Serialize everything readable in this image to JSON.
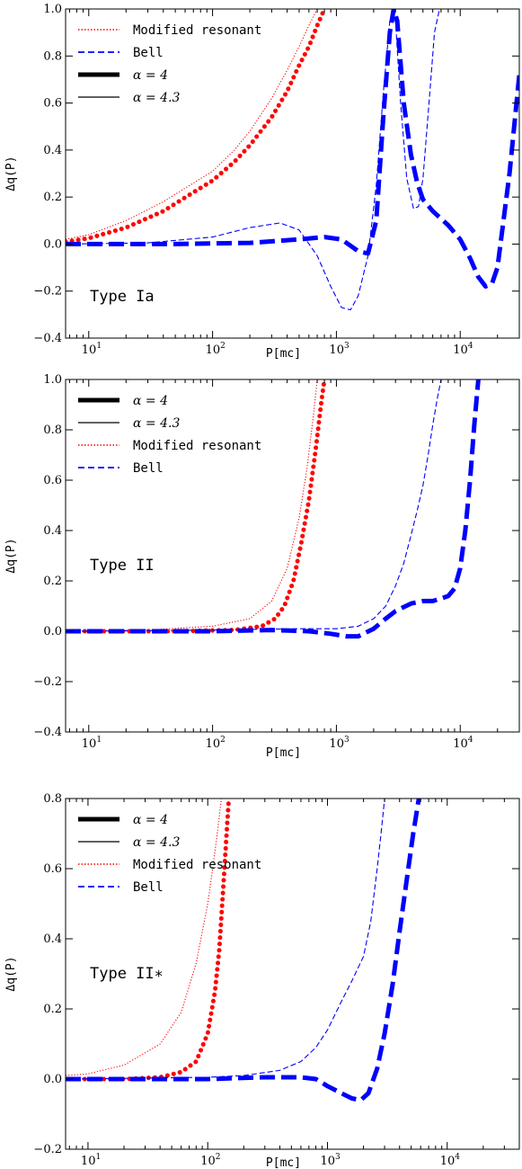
{
  "chart_data": [
    {
      "type": "line",
      "panel": "Type Ia",
      "annotation": "Type Ia",
      "xlabel": "P[mc]",
      "ylabel": "Δq(P)",
      "xscale": "log",
      "xlim": [
        6.5,
        30000
      ],
      "ylim": [
        -0.4,
        1.0
      ],
      "xticks": [
        {
          "v": 10,
          "b": "10",
          "e": "1"
        },
        {
          "v": 100,
          "b": "10",
          "e": "2"
        },
        {
          "v": 1000,
          "b": "10",
          "e": "3"
        },
        {
          "v": 10000,
          "b": "10",
          "e": "4"
        }
      ],
      "yticks": [
        {
          "v": -0.4,
          "t": "−0.4"
        },
        {
          "v": -0.2,
          "t": "−0.2"
        },
        {
          "v": 0.0,
          "t": "0.0"
        },
        {
          "v": 0.2,
          "t": "0.2"
        },
        {
          "v": 0.4,
          "t": "0.4"
        },
        {
          "v": 0.6,
          "t": "0.6"
        },
        {
          "v": 0.8,
          "t": "0.8"
        },
        {
          "v": 1.0,
          "t": "1.0"
        }
      ],
      "legend_position": "top-left",
      "legend": [
        {
          "label": "Modified resonant",
          "style": "dotted",
          "color": "#ff0000",
          "math": false
        },
        {
          "label": "Bell",
          "style": "dashed",
          "color": "#0000ff",
          "math": false
        },
        {
          "label": "α = 4",
          "style": "thick",
          "color": "#000000",
          "math": true
        },
        {
          "label": "α = 4.3",
          "style": "thin",
          "color": "#000000",
          "math": true
        }
      ],
      "series": [
        {
          "model": "Modified resonant",
          "alpha": 4,
          "color": "#ff0000",
          "dash": "dotted",
          "width": "thick",
          "x": [
            6.5,
            10,
            20,
            40,
            70,
            100,
            150,
            200,
            300,
            400,
            500,
            600,
            700,
            800
          ],
          "y": [
            0.01,
            0.025,
            0.07,
            0.14,
            0.22,
            0.27,
            0.35,
            0.42,
            0.54,
            0.65,
            0.76,
            0.84,
            0.93,
            1.0
          ]
        },
        {
          "model": "Modified resonant",
          "alpha": 4.3,
          "color": "#ff0000",
          "dash": "dotted",
          "width": "thin",
          "x": [
            6.5,
            10,
            20,
            40,
            70,
            100,
            150,
            200,
            300,
            400,
            500,
            600,
            700
          ],
          "y": [
            0.02,
            0.04,
            0.1,
            0.18,
            0.26,
            0.31,
            0.4,
            0.48,
            0.62,
            0.74,
            0.84,
            0.93,
            1.0
          ]
        },
        {
          "model": "Bell",
          "alpha": 4,
          "color": "#0000ff",
          "dash": "dashed",
          "width": "thick",
          "x": [
            6.5,
            50,
            200,
            500,
            800,
            1100,
            1500,
            1800,
            2100,
            2400,
            2700,
            2900,
            3100,
            3500,
            4000,
            4500,
            5000,
            6000,
            8000,
            10000,
            12000,
            14000,
            16000,
            18000,
            20000,
            25000,
            30000
          ],
          "y": [
            0.0,
            0.0,
            0.005,
            0.02,
            0.03,
            0.02,
            -0.03,
            -0.04,
            0.1,
            0.55,
            0.9,
            1.0,
            0.95,
            0.6,
            0.38,
            0.26,
            0.19,
            0.14,
            0.08,
            0.02,
            -0.06,
            -0.14,
            -0.18,
            -0.17,
            -0.1,
            0.3,
            0.72
          ]
        },
        {
          "model": "Bell",
          "alpha": 4.3,
          "color": "#0000ff",
          "dash": "dashed",
          "width": "thin",
          "x": [
            6.5,
            30,
            100,
            200,
            350,
            500,
            700,
            900,
            1100,
            1300,
            1500,
            1800,
            2100,
            2400,
            2700,
            3000,
            3300,
            3700,
            4200,
            4600,
            5000,
            5600,
            6200,
            6800
          ],
          "y": [
            0.0,
            0.005,
            0.03,
            0.07,
            0.09,
            0.06,
            -0.05,
            -0.18,
            -0.27,
            -0.28,
            -0.22,
            -0.05,
            0.25,
            0.65,
            0.95,
            0.95,
            0.6,
            0.28,
            0.15,
            0.16,
            0.28,
            0.6,
            0.9,
            1.0
          ]
        }
      ]
    },
    {
      "type": "line",
      "panel": "Type II",
      "annotation": "Type II",
      "xlabel": "P[mc]",
      "ylabel": "Δq(P)",
      "xscale": "log",
      "xlim": [
        6.5,
        30000
      ],
      "ylim": [
        -0.4,
        1.0
      ],
      "xticks": [
        {
          "v": 10,
          "b": "10",
          "e": "1"
        },
        {
          "v": 100,
          "b": "10",
          "e": "2"
        },
        {
          "v": 1000,
          "b": "10",
          "e": "3"
        },
        {
          "v": 10000,
          "b": "10",
          "e": "4"
        }
      ],
      "yticks": [
        {
          "v": -0.4,
          "t": "−0.4"
        },
        {
          "v": -0.2,
          "t": "−0.2"
        },
        {
          "v": 0.0,
          "t": "0.0"
        },
        {
          "v": 0.2,
          "t": "0.2"
        },
        {
          "v": 0.4,
          "t": "0.4"
        },
        {
          "v": 0.6,
          "t": "0.6"
        },
        {
          "v": 0.8,
          "t": "0.8"
        },
        {
          "v": 1.0,
          "t": "1.0"
        }
      ],
      "legend_position": "top-left",
      "legend": [
        {
          "label": "α = 4",
          "style": "thick",
          "color": "#000000",
          "math": true
        },
        {
          "label": "α = 4.3",
          "style": "thin",
          "color": "#000000",
          "math": true
        },
        {
          "label": "Modified resonant",
          "style": "dotted",
          "color": "#ff0000",
          "math": false
        },
        {
          "label": "Bell",
          "style": "dashed",
          "color": "#0000ff",
          "math": false
        }
      ],
      "series": [
        {
          "model": "Modified resonant",
          "alpha": 4,
          "color": "#ff0000",
          "dash": "dotted",
          "width": "thick",
          "x": [
            6.5,
            50,
            150,
            250,
            320,
            380,
            450,
            520,
            600,
            680,
            760,
            800
          ],
          "y": [
            0.0,
            0.0,
            0.005,
            0.02,
            0.05,
            0.1,
            0.2,
            0.35,
            0.52,
            0.72,
            0.92,
            1.0
          ]
        },
        {
          "model": "Modified resonant",
          "alpha": 4.3,
          "color": "#ff0000",
          "dash": "dotted",
          "width": "thin",
          "x": [
            6.5,
            30,
            100,
            200,
            300,
            400,
            500,
            580,
            650,
            700
          ],
          "y": [
            0.0,
            0.005,
            0.02,
            0.05,
            0.12,
            0.25,
            0.45,
            0.65,
            0.85,
            1.0
          ]
        },
        {
          "model": "Bell",
          "alpha": 4,
          "color": "#0000ff",
          "dash": "dashed",
          "width": "thick",
          "x": [
            6.5,
            100,
            300,
            600,
            900,
            1200,
            1500,
            2000,
            2500,
            3000,
            4000,
            5000,
            6000,
            7000,
            8000,
            9000,
            10000,
            11000,
            12000,
            13000,
            14000
          ],
          "y": [
            0.0,
            0.0,
            0.005,
            0.0,
            -0.01,
            -0.02,
            -0.02,
            0.01,
            0.05,
            0.08,
            0.11,
            0.12,
            0.12,
            0.13,
            0.14,
            0.17,
            0.25,
            0.4,
            0.6,
            0.82,
            1.0
          ]
        },
        {
          "model": "Bell",
          "alpha": 4.3,
          "color": "#0000ff",
          "dash": "dashed",
          "width": "thin",
          "x": [
            6.5,
            100,
            500,
            1000,
            1500,
            2000,
            2500,
            3000,
            3500,
            4000,
            4500,
            5000,
            5500,
            6000,
            6500,
            7000
          ],
          "y": [
            0.0,
            0.005,
            0.01,
            0.01,
            0.02,
            0.05,
            0.1,
            0.18,
            0.27,
            0.38,
            0.48,
            0.58,
            0.7,
            0.82,
            0.92,
            1.0
          ]
        }
      ]
    },
    {
      "type": "line",
      "panel": "Type II*",
      "annotation": "Type II∗",
      "xlabel": "P[mc]",
      "ylabel": "Δq(P)",
      "xscale": "log",
      "xlim": [
        6.5,
        40000
      ],
      "ylim": [
        -0.2,
        0.8
      ],
      "xticks": [
        {
          "v": 10,
          "b": "10",
          "e": "1"
        },
        {
          "v": 100,
          "b": "10",
          "e": "2"
        },
        {
          "v": 1000,
          "b": "10",
          "e": "3"
        },
        {
          "v": 10000,
          "b": "10",
          "e": "4"
        }
      ],
      "yticks": [
        {
          "v": -0.2,
          "t": "−0.2"
        },
        {
          "v": 0.0,
          "t": "0.0"
        },
        {
          "v": 0.2,
          "t": "0.2"
        },
        {
          "v": 0.4,
          "t": "0.4"
        },
        {
          "v": 0.6,
          "t": "0.6"
        },
        {
          "v": 0.8,
          "t": "0.8"
        }
      ],
      "legend_position": "top-left",
      "legend": [
        {
          "label": "α = 4",
          "style": "thick",
          "color": "#000000",
          "math": true
        },
        {
          "label": "α = 4.3",
          "style": "thin",
          "color": "#000000",
          "math": true
        },
        {
          "label": "Modified resonant",
          "style": "dotted",
          "color": "#ff0000",
          "math": false
        },
        {
          "label": "Bell",
          "style": "dashed",
          "color": "#0000ff",
          "math": false
        }
      ],
      "series": [
        {
          "model": "Modified resonant",
          "alpha": 4,
          "color": "#ff0000",
          "dash": "dotted",
          "width": "thick",
          "x": [
            6.5,
            20,
            40,
            60,
            80,
            100,
            115,
            125,
            135,
            145,
            150
          ],
          "y": [
            0.0,
            0.0,
            0.005,
            0.02,
            0.05,
            0.13,
            0.25,
            0.37,
            0.55,
            0.72,
            0.8
          ]
        },
        {
          "model": "Modified resonant",
          "alpha": 4.3,
          "color": "#ff0000",
          "dash": "dotted",
          "width": "thin",
          "x": [
            6.5,
            10,
            20,
            40,
            60,
            80,
            100,
            110,
            120,
            130
          ],
          "y": [
            0.01,
            0.015,
            0.04,
            0.1,
            0.19,
            0.33,
            0.5,
            0.6,
            0.7,
            0.8
          ]
        },
        {
          "model": "Bell",
          "alpha": 4,
          "color": "#0000ff",
          "dash": "dashed",
          "width": "thick",
          "x": [
            6.5,
            100,
            300,
            600,
            800,
            1000,
            1300,
            1600,
            1900,
            2200,
            2600,
            3000,
            3500,
            4000,
            4600,
            5200,
            5800
          ],
          "y": [
            0.0,
            0.0,
            0.005,
            0.005,
            0.0,
            -0.02,
            -0.04,
            -0.055,
            -0.06,
            -0.04,
            0.03,
            0.13,
            0.27,
            0.42,
            0.57,
            0.7,
            0.8
          ]
        },
        {
          "model": "Bell",
          "alpha": 4.3,
          "color": "#0000ff",
          "dash": "dashed",
          "width": "thin",
          "x": [
            6.5,
            100,
            200,
            400,
            600,
            800,
            1000,
            1300,
            1600,
            2000,
            2300,
            2600,
            2800,
            3000
          ],
          "y": [
            0.0,
            0.005,
            0.01,
            0.025,
            0.05,
            0.09,
            0.14,
            0.22,
            0.28,
            0.35,
            0.45,
            0.6,
            0.7,
            0.8
          ]
        }
      ]
    }
  ]
}
